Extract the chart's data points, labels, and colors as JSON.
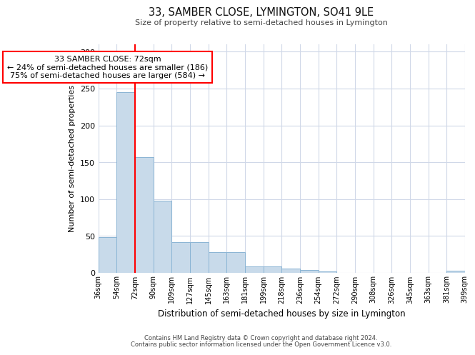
{
  "title1": "33, SAMBER CLOSE, LYMINGTON, SO41 9LE",
  "title2": "Size of property relative to semi-detached houses in Lymington",
  "xlabel": "Distribution of semi-detached houses by size in Lymington",
  "ylabel": "Number of semi-detached properties",
  "bin_labels": [
    "36sqm",
    "54sqm",
    "72sqm",
    "90sqm",
    "109sqm",
    "127sqm",
    "145sqm",
    "163sqm",
    "181sqm",
    "199sqm",
    "218sqm",
    "236sqm",
    "254sqm",
    "272sqm",
    "290sqm",
    "308sqm",
    "326sqm",
    "345sqm",
    "363sqm",
    "381sqm",
    "399sqm"
  ],
  "bar_heights": [
    48,
    245,
    157,
    98,
    42,
    42,
    28,
    28,
    9,
    9,
    6,
    4,
    2,
    0,
    0,
    0,
    0,
    0,
    0,
    3
  ],
  "bar_color": "#c8daea",
  "bar_edge_color": "#8ab4d4",
  "red_line_x": 2,
  "annotation_text": "33 SAMBER CLOSE: 72sqm\n← 24% of semi-detached houses are smaller (186)\n75% of semi-detached houses are larger (584) →",
  "annotation_box_color": "white",
  "annotation_box_edge_color": "red",
  "ylim": [
    0,
    310
  ],
  "yticks": [
    0,
    50,
    100,
    150,
    200,
    250,
    300
  ],
  "footer1": "Contains HM Land Registry data © Crown copyright and database right 2024.",
  "footer2": "Contains public sector information licensed under the Open Government Licence v3.0.",
  "background_color": "white",
  "grid_color": "#d0d8e8"
}
